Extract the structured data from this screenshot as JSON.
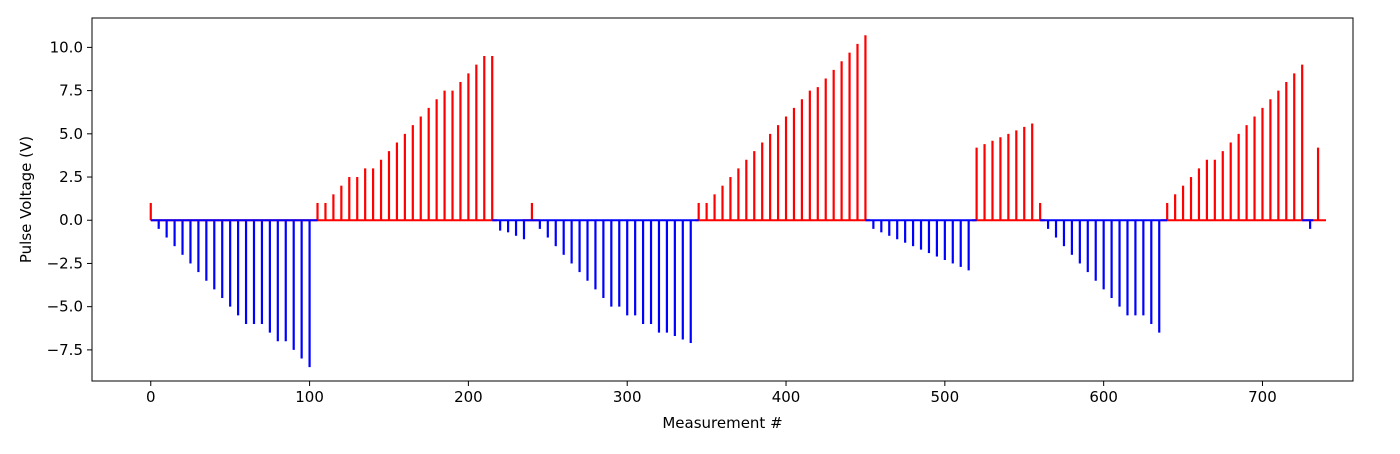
{
  "chart_data": {
    "type": "stem",
    "title": "",
    "xlabel": "Measurement #",
    "ylabel": "Pulse Voltage (V)",
    "xlim": [
      -37,
      757
    ],
    "ylim": [
      -9.3,
      11.7
    ],
    "x_ticks": [
      0,
      100,
      200,
      300,
      400,
      500,
      600,
      700
    ],
    "x_tick_labels": [
      "0",
      "100",
      "200",
      "300",
      "400",
      "500",
      "600",
      "700"
    ],
    "y_ticks": [
      -7.5,
      -5.0,
      -2.5,
      0.0,
      2.5,
      5.0,
      7.5,
      10.0
    ],
    "y_tick_labels": [
      "−7.5",
      "−5.0",
      "−2.5",
      "0.0",
      "2.5",
      "5.0",
      "7.5",
      "10.0"
    ],
    "grid": false,
    "colors": {
      "positive": "#ff0000",
      "negative": "#0000ff",
      "axis": "#000000",
      "background": "#ffffff"
    },
    "series": [
      {
        "color": "#ff0000",
        "baseline": [
          [
            0,
            102
          ],
          [
            102,
            218
          ],
          [
            234,
            245
          ],
          [
            343,
            453
          ],
          [
            517,
            563
          ],
          [
            636,
            740
          ]
        ],
        "points": [
          [
            0,
            1.0
          ],
          [
            105,
            1.0
          ],
          [
            110,
            1.0
          ],
          [
            115,
            1.5
          ],
          [
            120,
            2.0
          ],
          [
            125,
            2.5
          ],
          [
            130,
            2.5
          ],
          [
            135,
            3.0
          ],
          [
            140,
            3.0
          ],
          [
            145,
            3.5
          ],
          [
            150,
            4.0
          ],
          [
            155,
            4.5
          ],
          [
            160,
            5.0
          ],
          [
            165,
            5.5
          ],
          [
            170,
            6.0
          ],
          [
            175,
            6.5
          ],
          [
            180,
            7.0
          ],
          [
            185,
            7.5
          ],
          [
            190,
            7.5
          ],
          [
            195,
            8.0
          ],
          [
            200,
            8.5
          ],
          [
            205,
            9.0
          ],
          [
            210,
            9.5
          ],
          [
            215,
            9.5
          ],
          [
            240,
            1.0
          ],
          [
            345,
            1.0
          ],
          [
            350,
            1.0
          ],
          [
            355,
            1.5
          ],
          [
            360,
            2.0
          ],
          [
            365,
            2.5
          ],
          [
            370,
            3.0
          ],
          [
            375,
            3.5
          ],
          [
            380,
            4.0
          ],
          [
            385,
            4.5
          ],
          [
            390,
            5.0
          ],
          [
            395,
            5.5
          ],
          [
            400,
            6.0
          ],
          [
            405,
            6.5
          ],
          [
            410,
            7.0
          ],
          [
            415,
            7.5
          ],
          [
            420,
            7.7
          ],
          [
            425,
            8.2
          ],
          [
            430,
            8.7
          ],
          [
            435,
            9.2
          ],
          [
            440,
            9.7
          ],
          [
            445,
            10.2
          ],
          [
            450,
            10.7
          ],
          [
            520,
            4.2
          ],
          [
            525,
            4.4
          ],
          [
            530,
            4.6
          ],
          [
            535,
            4.8
          ],
          [
            540,
            5.0
          ],
          [
            545,
            5.2
          ],
          [
            550,
            5.4
          ],
          [
            555,
            5.6
          ],
          [
            560,
            1.0
          ],
          [
            640,
            1.0
          ],
          [
            645,
            1.5
          ],
          [
            650,
            2.0
          ],
          [
            655,
            2.5
          ],
          [
            660,
            3.0
          ],
          [
            665,
            3.5
          ],
          [
            670,
            3.5
          ],
          [
            675,
            4.0
          ],
          [
            680,
            4.5
          ],
          [
            685,
            5.0
          ],
          [
            690,
            5.5
          ],
          [
            695,
            6.0
          ],
          [
            700,
            6.5
          ],
          [
            705,
            7.0
          ],
          [
            710,
            7.5
          ],
          [
            715,
            8.0
          ],
          [
            720,
            8.5
          ],
          [
            725,
            9.0
          ],
          [
            735,
            4.2
          ]
        ]
      },
      {
        "color": "#0000ff",
        "baseline": [
          [
            0,
            105
          ],
          [
            215,
            240
          ],
          [
            240,
            345
          ],
          [
            450,
            520
          ],
          [
            560,
            640
          ],
          [
            725,
            732
          ]
        ],
        "points": [
          [
            5,
            -0.5
          ],
          [
            10,
            -1.0
          ],
          [
            15,
            -1.5
          ],
          [
            20,
            -2.0
          ],
          [
            25,
            -2.5
          ],
          [
            30,
            -3.0
          ],
          [
            35,
            -3.5
          ],
          [
            40,
            -4.0
          ],
          [
            45,
            -4.5
          ],
          [
            50,
            -5.0
          ],
          [
            55,
            -5.5
          ],
          [
            60,
            -6.0
          ],
          [
            65,
            -6.0
          ],
          [
            70,
            -6.0
          ],
          [
            75,
            -6.5
          ],
          [
            80,
            -7.0
          ],
          [
            85,
            -7.0
          ],
          [
            90,
            -7.5
          ],
          [
            95,
            -8.0
          ],
          [
            100,
            -8.5
          ],
          [
            220,
            -0.6
          ],
          [
            225,
            -0.7
          ],
          [
            230,
            -0.9
          ],
          [
            235,
            -1.1
          ],
          [
            245,
            -0.5
          ],
          [
            250,
            -1.0
          ],
          [
            255,
            -1.5
          ],
          [
            260,
            -2.0
          ],
          [
            265,
            -2.5
          ],
          [
            270,
            -3.0
          ],
          [
            275,
            -3.5
          ],
          [
            280,
            -4.0
          ],
          [
            285,
            -4.5
          ],
          [
            290,
            -5.0
          ],
          [
            295,
            -5.0
          ],
          [
            300,
            -5.5
          ],
          [
            305,
            -5.5
          ],
          [
            310,
            -6.0
          ],
          [
            315,
            -6.0
          ],
          [
            320,
            -6.5
          ],
          [
            325,
            -6.5
          ],
          [
            330,
            -6.7
          ],
          [
            335,
            -6.9
          ],
          [
            340,
            -7.1
          ],
          [
            455,
            -0.5
          ],
          [
            460,
            -0.7
          ],
          [
            465,
            -0.9
          ],
          [
            470,
            -1.1
          ],
          [
            475,
            -1.3
          ],
          [
            480,
            -1.5
          ],
          [
            485,
            -1.7
          ],
          [
            490,
            -1.9
          ],
          [
            495,
            -2.1
          ],
          [
            500,
            -2.3
          ],
          [
            505,
            -2.5
          ],
          [
            510,
            -2.7
          ],
          [
            515,
            -2.9
          ],
          [
            565,
            -0.5
          ],
          [
            570,
            -1.0
          ],
          [
            575,
            -1.5
          ],
          [
            580,
            -2.0
          ],
          [
            585,
            -2.5
          ],
          [
            590,
            -3.0
          ],
          [
            595,
            -3.5
          ],
          [
            600,
            -4.0
          ],
          [
            605,
            -4.5
          ],
          [
            610,
            -5.0
          ],
          [
            615,
            -5.5
          ],
          [
            620,
            -5.5
          ],
          [
            625,
            -5.5
          ],
          [
            630,
            -6.0
          ],
          [
            635,
            -6.5
          ],
          [
            730,
            -0.5
          ]
        ]
      }
    ]
  }
}
